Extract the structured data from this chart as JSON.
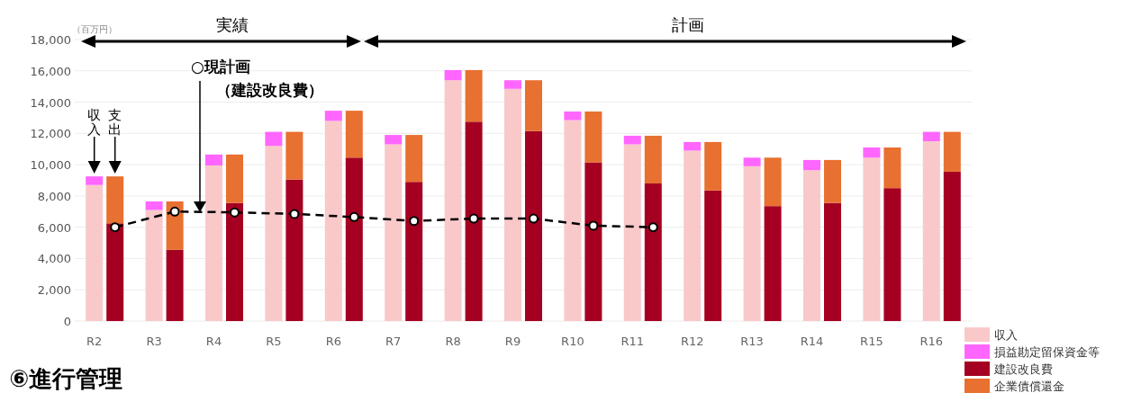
{
  "chart_data": {
    "type": "bar",
    "stacked": true,
    "grid": "y",
    "legend": "bottom right",
    "ylabel": "（百万円）",
    "categories": [
      "R2",
      null,
      "R3",
      null,
      "R4",
      null,
      "R5",
      null,
      "R6",
      null,
      "R7",
      null,
      "R8",
      null,
      "R9",
      null,
      "R10",
      null,
      "R11",
      null,
      "R12",
      null,
      "R13",
      null,
      "R14",
      null,
      "R15",
      null,
      "R16",
      null
    ],
    "ylim": [
      0,
      18000
    ],
    "yticks": [
      0,
      {
        "value": 2000,
        "label": "2,000"
      },
      {
        "value": 4000,
        "label": "4,000"
      },
      {
        "value": 6000,
        "label": "6,000"
      },
      {
        "value": 8000,
        "label": "8,000"
      },
      {
        "value": 10000,
        "label": "10,000"
      },
      {
        "value": 12000,
        "label": "12,000"
      },
      {
        "value": 14000,
        "label": "14,000"
      },
      {
        "value": 16000,
        "label": "16,000"
      },
      {
        "value": 18000,
        "label": "18,000"
      }
    ],
    "series": [
      {
        "name": "収入",
        "color": "#f9c9c9",
        "values": [
          8700,
          null,
          7100,
          null,
          9950,
          null,
          11200,
          null,
          12800,
          null,
          11300,
          null,
          15400,
          null,
          14850,
          null,
          12850,
          null,
          11300,
          null,
          10900,
          null,
          9900,
          null,
          9650,
          null,
          10450,
          null,
          11500,
          null
        ]
      },
      {
        "name": "損益勘定留保資金等",
        "color": "#ff66ff",
        "values": [
          550,
          null,
          550,
          null,
          700,
          null,
          900,
          null,
          650,
          null,
          600,
          null,
          650,
          null,
          550,
          null,
          550,
          null,
          550,
          null,
          550,
          null,
          550,
          null,
          650,
          null,
          650,
          null,
          600,
          null
        ]
      },
      {
        "name": "建設改良費",
        "color": "#a50021",
        "values": [
          null,
          6250,
          null,
          4550,
          null,
          7550,
          null,
          9050,
          null,
          10450,
          null,
          8900,
          null,
          12750,
          null,
          12150,
          null,
          10150,
          null,
          8800,
          null,
          8350,
          null,
          7350,
          null,
          7550,
          null,
          8500,
          null,
          9550
        ]
      },
      {
        "name": "企業債償還金",
        "color": "#e87030",
        "values": [
          null,
          3000,
          null,
          3100,
          null,
          3100,
          null,
          3050,
          null,
          3000,
          null,
          3000,
          null,
          3300,
          null,
          3250,
          null,
          3250,
          null,
          3050,
          null,
          3100,
          null,
          3100,
          null,
          2750,
          null,
          2600,
          null,
          2550
        ]
      },
      {
        "name": "○現計画（建設改良費）",
        "type": "line",
        "color": "#000000",
        "marker": "circle",
        "line_style": "dashed",
        "values": [
          null,
          6000,
          null,
          7000,
          null,
          6950,
          null,
          6850,
          null,
          6650,
          null,
          6400,
          null,
          6550,
          null,
          6550,
          null,
          6100,
          null,
          6000,
          null,
          null,
          null,
          null,
          null,
          null,
          null,
          null,
          null,
          null
        ]
      }
    ],
    "annotations": [
      "実績",
      "計画",
      "収入",
      "支出",
      "⑥進行管理"
    ]
  }
}
